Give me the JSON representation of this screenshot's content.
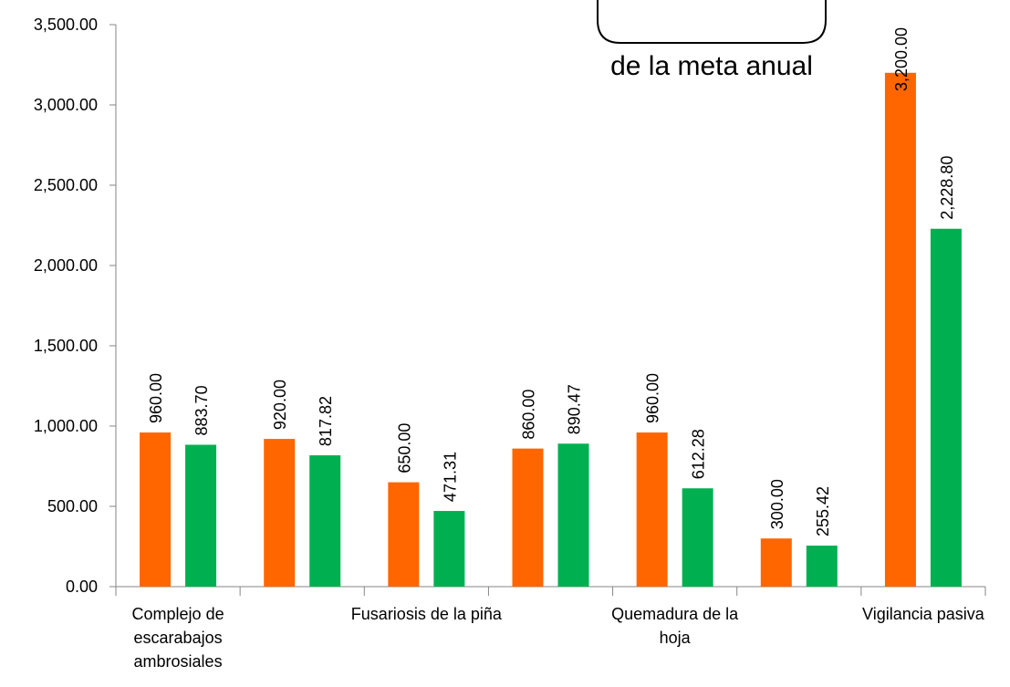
{
  "chart_data": {
    "type": "bar",
    "annotation": "de la meta anual",
    "categories": [
      "Complejo de escarabajos ambrosiales",
      null,
      "Fusariosis de la piña",
      null,
      "Quemadura de la hoja",
      null,
      "Vigilancia pasiva"
    ],
    "series": [
      {
        "color": "#ff6600",
        "values": [
          960,
          920,
          650,
          860,
          960,
          300,
          3200
        ],
        "value_labels": [
          "960.00",
          "920.00",
          "650.00",
          "860.00",
          "960.00",
          "300.00",
          "3,200.00"
        ]
      },
      {
        "color": "#00b050",
        "values": [
          883.7,
          817.82,
          471.31,
          890.47,
          612.28,
          255.42,
          2228.8
        ],
        "value_labels": [
          "883.70",
          "817.82",
          "471.31",
          "890.47",
          "612.28",
          "255.42",
          "2,228.80"
        ]
      }
    ],
    "ylim": [
      0,
      3500
    ],
    "yticks": [
      {
        "value": 0,
        "label": "0.00"
      },
      {
        "value": 500,
        "label": "500.00"
      },
      {
        "value": 1000,
        "label": "1,000.00"
      },
      {
        "value": 1500,
        "label": "1,500.00"
      },
      {
        "value": 2000,
        "label": "2,000.00"
      },
      {
        "value": 2500,
        "label": "2,500.00"
      },
      {
        "value": 3000,
        "label": "3,000.00"
      },
      {
        "value": 3500,
        "label": "3,500.00"
      }
    ]
  }
}
